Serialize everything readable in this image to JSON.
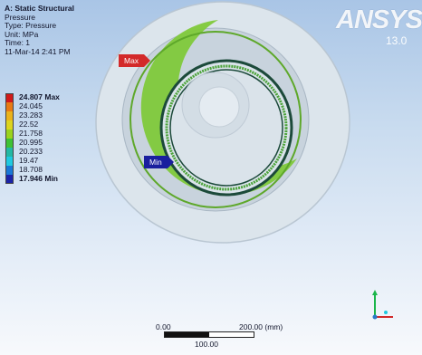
{
  "info": {
    "title": "A: Static Structural",
    "type_name": "Pressure",
    "type_line": "Type: Pressure",
    "unit": "Unit: MPa",
    "time": "Time: 1",
    "date": "11-Mar-14 2:41 PM"
  },
  "legend": [
    {
      "label": "24.807 Max",
      "color": "#d11a1a",
      "bold": true
    },
    {
      "label": "24.045",
      "color": "#e87a14",
      "bold": false
    },
    {
      "label": "23.283",
      "color": "#eab31b",
      "bold": false
    },
    {
      "label": "22.52",
      "color": "#dcd41e",
      "bold": false
    },
    {
      "label": "21.758",
      "color": "#9ad31e",
      "bold": false
    },
    {
      "label": "20.995",
      "color": "#3dc234",
      "bold": false
    },
    {
      "label": "20.233",
      "color": "#22b8a4",
      "bold": false
    },
    {
      "label": "19.47",
      "color": "#1ec9e0",
      "bold": false
    },
    {
      "label": "18.708",
      "color": "#1877d6",
      "bold": false
    },
    {
      "label": "17.946 Min",
      "color": "#1a23a8",
      "bold": true
    }
  ],
  "probes": {
    "max": "Max",
    "min": "Min"
  },
  "logo": {
    "text": "ANSYS",
    "version": "13.0"
  },
  "scale": {
    "left": "0.00",
    "right": "200.00 (mm)",
    "middle": "100.00"
  },
  "colors": {
    "ring_green": "#7fc93a",
    "ring_dark": "#1c4a3a",
    "face": "#dde6ec"
  }
}
